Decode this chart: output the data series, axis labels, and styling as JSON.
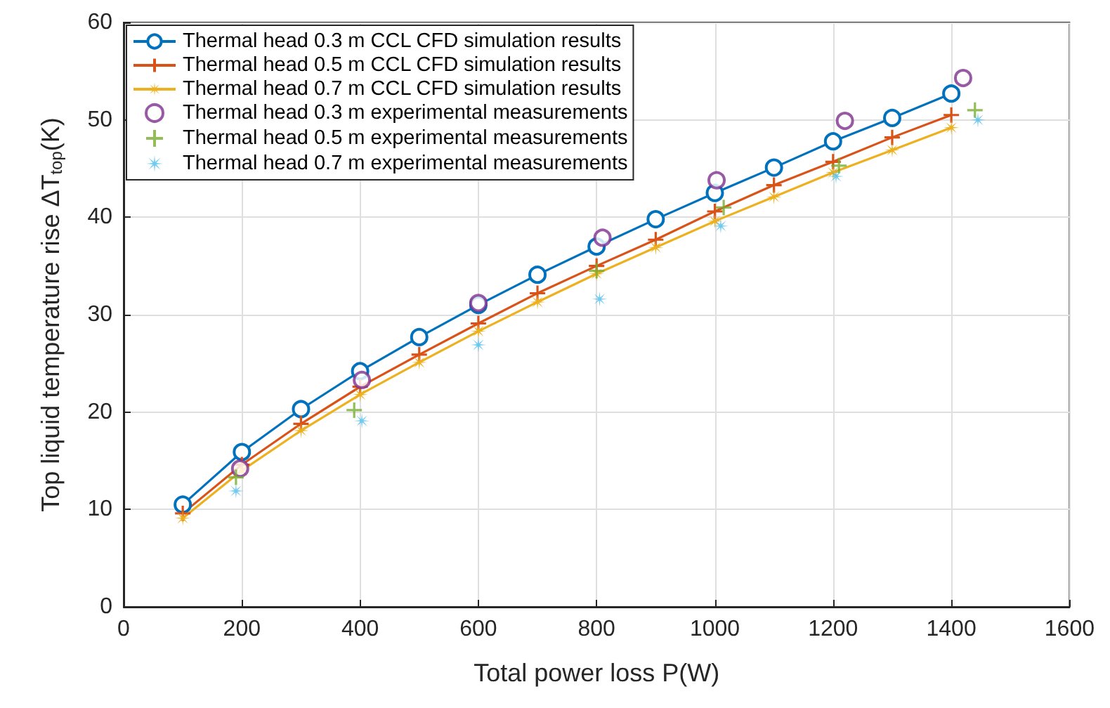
{
  "chart_data": {
    "type": "line",
    "xlabel": "Total power loss P(W)",
    "ylabel": "Top liquid temperature rise ΔT$_{top}$(K)",
    "xlim": [
      0,
      1600
    ],
    "xticks": [
      0,
      200,
      400,
      600,
      800,
      1000,
      1200,
      1400,
      1600
    ],
    "ylim": [
      0,
      60
    ],
    "yticks": [
      0,
      10,
      20,
      30,
      40,
      50,
      60
    ],
    "grid": true,
    "legend": "top left",
    "series": [
      {
        "name": "Thermal head 0.3 m CCL CFD simulation results",
        "marker": "circle",
        "color": "#0072bd",
        "x": [
          100,
          200,
          300,
          400,
          500,
          600,
          700,
          800,
          900,
          1000,
          1100,
          1200,
          1300,
          1400
        ],
        "values": [
          10.5,
          15.9,
          20.3,
          24.2,
          27.7,
          31,
          34.1,
          37,
          39.8,
          42.5,
          45.1,
          47.8,
          50.2,
          52.7
        ]
      },
      {
        "name": "Thermal head 0.5 m CCL CFD simulation results",
        "marker": "cross",
        "color": "#d95319",
        "x": [
          100,
          200,
          300,
          400,
          500,
          600,
          700,
          800,
          900,
          1000,
          1100,
          1200,
          1300,
          1400
        ],
        "values": [
          9.6,
          14.6,
          18.8,
          22.6,
          25.9,
          29.1,
          32.2,
          35,
          37.7,
          40.6,
          43.3,
          45.7,
          48.2,
          50.5
        ]
      },
      {
        "name": "Thermal head 0.7 m CCL CFD simulation results",
        "marker": "star",
        "color": "#edb120",
        "x": [
          100,
          200,
          300,
          400,
          500,
          600,
          700,
          800,
          900,
          1000,
          1100,
          1200,
          1300,
          1400
        ],
        "values": [
          9.1,
          14,
          18.1,
          21.8,
          25.1,
          28.3,
          31.3,
          34.2,
          36.9,
          39.6,
          42.1,
          44.6,
          46.9,
          49.2
        ]
      },
      {
        "name": "Thermal head 0.3 m experimental measurements",
        "type": "scatter",
        "marker": "circle",
        "color": "#7e2f8e",
        "x": [
          197,
          403,
          600,
          810,
          1003,
          1220,
          1420
        ],
        "values": [
          14.2,
          23.3,
          31.2,
          37.9,
          43.8,
          49.9,
          54.3
        ]
      },
      {
        "name": "Thermal head 0.5 m experimental measurements",
        "type": "scatter",
        "marker": "cross",
        "color": "#77ac30",
        "x": [
          190,
          390,
          800,
          1015,
          1210,
          1440
        ],
        "values": [
          13.3,
          20.2,
          34.5,
          41,
          45.3,
          51
        ]
      },
      {
        "name": "Thermal head 0.7 m experimental measurements",
        "type": "scatter",
        "marker": "star",
        "color": "#4dbeee",
        "x": [
          190,
          403,
          600,
          805,
          1010,
          1205,
          1445
        ],
        "values": [
          11.9,
          19.1,
          26.9,
          31.6,
          39.1,
          44.2,
          50
        ]
      }
    ]
  }
}
